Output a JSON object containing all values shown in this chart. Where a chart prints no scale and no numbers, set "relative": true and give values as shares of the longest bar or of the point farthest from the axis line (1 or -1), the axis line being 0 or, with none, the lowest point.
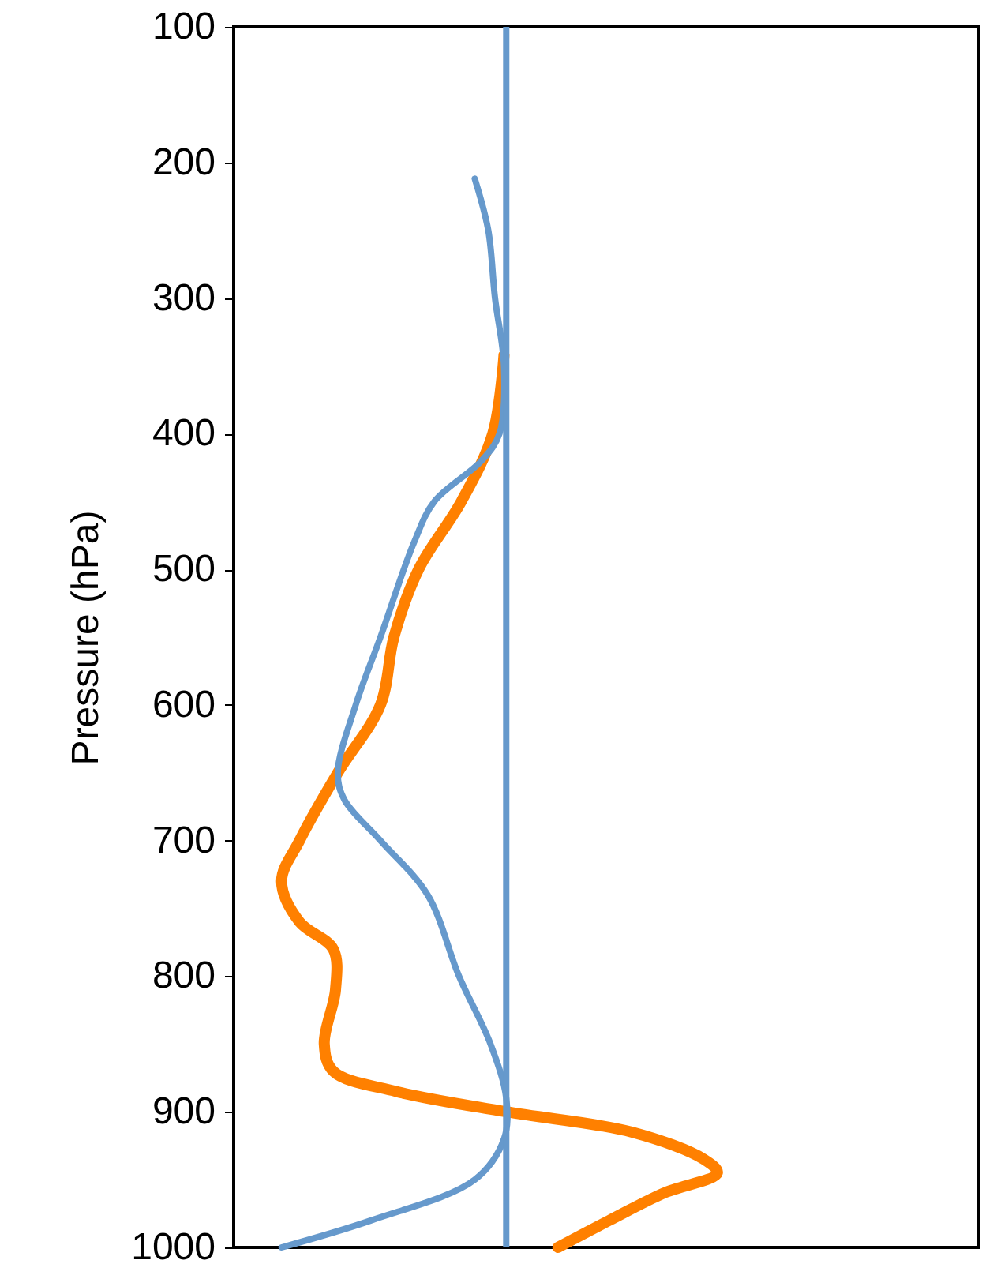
{
  "chart_data": {
    "type": "line",
    "orientation": "horizontal",
    "ylabel": "Pressure (hPa)",
    "relative": true,
    "tick_labels": "y",
    "ylim": [
      1000,
      100
    ],
    "yticks": [
      100,
      200,
      300,
      400,
      500,
      600,
      700,
      800,
      900,
      1000
    ],
    "grid": false,
    "series": [
      {
        "color": "#ff8000",
        "x": [
          342,
          400,
          450,
          500,
          550,
          600,
          650,
          700,
          730,
          760,
          780,
          810,
          850,
          870,
          885,
          900,
          915,
          935,
          945,
          960,
          980,
          1000
        ],
        "values": [
          -0.01,
          -0.06,
          -0.2,
          -0.39,
          -0.5,
          -0.56,
          -0.75,
          -0.92,
          -1.0,
          -0.92,
          -0.77,
          -0.76,
          -0.81,
          -0.77,
          -0.49,
          0,
          0.56,
          0.88,
          0.94,
          0.7,
          0.46,
          0.23
        ]
      },
      {
        "color": "#6699cc",
        "x": [
          212,
          250,
          300,
          350,
          400,
          420,
          450,
          480,
          550,
          600,
          650,
          670,
          700,
          740,
          800,
          850,
          890,
          920,
          950,
          980,
          1000
        ],
        "values": [
          -0.14,
          -0.08,
          -0.05,
          -0.01,
          -0.03,
          -0.11,
          -0.32,
          -0.41,
          -0.56,
          -0.67,
          -0.75,
          -0.72,
          -0.56,
          -0.35,
          -0.21,
          -0.07,
          0,
          -0.01,
          -0.14,
          -0.6,
          -1.0
        ]
      }
    ],
    "ref_lines": [
      {
        "axis": "x",
        "value": 0,
        "color": "#6699cc"
      }
    ]
  }
}
